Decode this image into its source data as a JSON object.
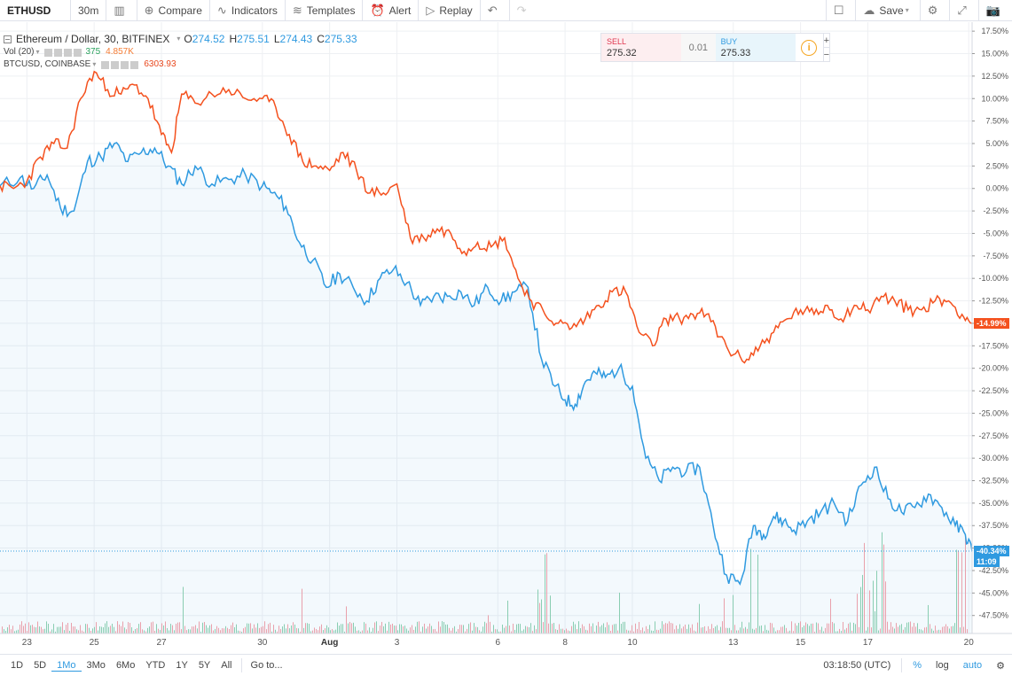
{
  "toolbar": {
    "symbol": "ETHUSD",
    "interval": "30m",
    "compare": "Compare",
    "indicators": "Indicators",
    "templates": "Templates",
    "alert": "Alert",
    "replay": "Replay",
    "save": "Save"
  },
  "legend": {
    "title": "Ethereum / Dollar, 30, BITFINEX",
    "open_label": "O",
    "open": "274.52",
    "high_label": "H",
    "high": "275.51",
    "low_label": "L",
    "low": "274.43",
    "close_label": "C",
    "close": "275.33",
    "vol_label": "Vol (20)",
    "vol_value": "375",
    "vol_ma": "4.857K",
    "compare_label": "BTCUSD, COINBASE",
    "compare_value": "6303.93"
  },
  "trade": {
    "sell_label": "SELL",
    "sell_price": "275.32",
    "spread": "0.01",
    "buy_label": "BUY",
    "buy_price": "275.33",
    "info": "i",
    "plus": "+",
    "minus": "−"
  },
  "price_tags": {
    "btc": "-14.99%",
    "eth": "-40.34%",
    "countdown": "11:09"
  },
  "bottom": {
    "ranges": [
      "1D",
      "5D",
      "1Mo",
      "3Mo",
      "6Mo",
      "YTD",
      "1Y",
      "5Y",
      "All"
    ],
    "active_range": "1Mo",
    "goto": "Go to...",
    "time": "03:18:50 (UTC)",
    "percent": "%",
    "log": "log",
    "auto": "auto"
  },
  "colors": {
    "eth": "#2f9ae0",
    "btc": "#f4511e",
    "grid": "#eef0f3",
    "volume_up": "#8fd1b0",
    "volume_down": "#f5a1a8"
  },
  "chart_data": {
    "type": "line",
    "y_unit": "%",
    "y_ticks": [
      "17.50%",
      "15.00%",
      "12.50%",
      "10.00%",
      "7.50%",
      "5.00%",
      "2.50%",
      "0.00%",
      "-2.50%",
      "-5.00%",
      "-7.50%",
      "-10.00%",
      "-12.50%",
      "-15.00%",
      "-17.50%",
      "-20.00%",
      "-22.50%",
      "-25.00%",
      "-27.50%",
      "-30.00%",
      "-32.50%",
      "-35.00%",
      "-37.50%",
      "-40.00%",
      "-42.50%",
      "-45.00%",
      "-47.50%"
    ],
    "ylim": [
      -49.5,
      18.5
    ],
    "x_ticks": [
      "23",
      "25",
      "27",
      "30",
      "Aug",
      "3",
      "6",
      "8",
      "10",
      "13",
      "15",
      "17",
      "20"
    ],
    "x_range": [
      22.2,
      51.1
    ],
    "x_tick_positions": [
      23,
      25,
      27,
      30,
      32,
      34,
      37,
      39,
      41,
      44,
      46,
      48,
      51
    ],
    "grid": true,
    "series": [
      {
        "name": "Ethereum / Dollar",
        "x": [
          22.2,
          22.8,
          23.2,
          23.6,
          24.0,
          24.4,
          24.8,
          25.2,
          25.6,
          26.0,
          26.4,
          26.8,
          27.2,
          27.6,
          28.0,
          28.5,
          29.0,
          29.5,
          30.0,
          30.3,
          30.7,
          31.1,
          31.5,
          31.9,
          32.3,
          32.7,
          33.1,
          33.5,
          33.9,
          34.3,
          34.7,
          35.1,
          35.5,
          35.9,
          36.3,
          36.7,
          37.1,
          37.5,
          37.9,
          38.3,
          38.7,
          39.0,
          39.3,
          39.6,
          39.9,
          40.2,
          40.6,
          41.0,
          41.4,
          41.8,
          42.2,
          42.6,
          43.0,
          43.4,
          43.8,
          44.2,
          44.6,
          44.9,
          45.2,
          45.5,
          45.8,
          46.2,
          46.6,
          47.0,
          47.4,
          47.8,
          48.2,
          48.6,
          49.0,
          49.4,
          49.8,
          50.2,
          50.6,
          50.9,
          51.1
        ],
        "values": [
          0.3,
          1.2,
          0.0,
          1.5,
          -2.2,
          -2.5,
          3.0,
          3.5,
          5.0,
          3.0,
          4.0,
          4.5,
          2.5,
          0.5,
          2.5,
          0.5,
          1.0,
          1.5,
          0.3,
          -0.5,
          -2.0,
          -6.0,
          -8.0,
          -11.0,
          -9.5,
          -11.0,
          -12.5,
          -10.0,
          -9.0,
          -10.5,
          -13.0,
          -12.0,
          -12.0,
          -11.5,
          -13.0,
          -11.0,
          -12.5,
          -11.5,
          -11.0,
          -19.0,
          -22.0,
          -23.5,
          -24.0,
          -21.5,
          -20.5,
          -21.0,
          -20.0,
          -22.0,
          -30.0,
          -32.5,
          -31.0,
          -31.5,
          -31.0,
          -37.5,
          -43.0,
          -44.0,
          -37.5,
          -38.5,
          -36.5,
          -37.0,
          -38.0,
          -37.0,
          -36.0,
          -35.0,
          -37.0,
          -33.0,
          -31.0,
          -34.5,
          -36.0,
          -35.5,
          -34.0,
          -35.5,
          -37.5,
          -38.5,
          -40.34
        ]
      },
      {
        "name": "BTCUSD, COINBASE",
        "x": [
          22.2,
          22.6,
          23.0,
          23.4,
          23.8,
          24.2,
          24.6,
          25.0,
          25.4,
          25.8,
          26.2,
          26.6,
          27.0,
          27.3,
          27.6,
          28.0,
          28.5,
          29.0,
          29.5,
          30.0,
          30.4,
          30.8,
          31.2,
          31.6,
          32.0,
          32.4,
          32.8,
          33.2,
          33.6,
          34.0,
          34.4,
          34.8,
          35.2,
          35.6,
          36.0,
          36.4,
          36.8,
          37.2,
          37.6,
          38.0,
          38.4,
          38.8,
          39.2,
          39.6,
          40.0,
          40.4,
          40.8,
          41.2,
          41.6,
          42.0,
          42.4,
          42.8,
          43.2,
          43.6,
          44.0,
          44.4,
          44.8,
          45.2,
          45.6,
          46.0,
          46.4,
          46.8,
          47.2,
          47.6,
          48.0,
          48.4,
          48.8,
          49.2,
          49.6,
          50.0,
          50.4,
          50.8,
          51.1
        ],
        "values": [
          0.3,
          0.0,
          0.8,
          3.5,
          5.0,
          4.5,
          10.0,
          13.0,
          11.0,
          10.5,
          11.5,
          10.0,
          6.0,
          4.0,
          10.5,
          9.5,
          10.5,
          11.0,
          10.0,
          10.0,
          9.0,
          6.0,
          3.0,
          2.5,
          2.0,
          4.0,
          2.0,
          -0.5,
          -0.5,
          0.5,
          -5.5,
          -5.5,
          -4.5,
          -5.0,
          -7.0,
          -6.0,
          -6.5,
          -5.5,
          -10.0,
          -12.5,
          -14.0,
          -15.0,
          -15.5,
          -14.5,
          -13.0,
          -11.5,
          -11.5,
          -16.0,
          -17.5,
          -14.5,
          -14.5,
          -14.0,
          -14.0,
          -16.5,
          -18.5,
          -19.0,
          -17.5,
          -16.0,
          -14.5,
          -13.5,
          -14.0,
          -13.0,
          -14.5,
          -13.0,
          -13.5,
          -12.0,
          -12.5,
          -13.5,
          -13.5,
          -12.5,
          -12.5,
          -14.0,
          -14.99
        ]
      }
    ]
  }
}
